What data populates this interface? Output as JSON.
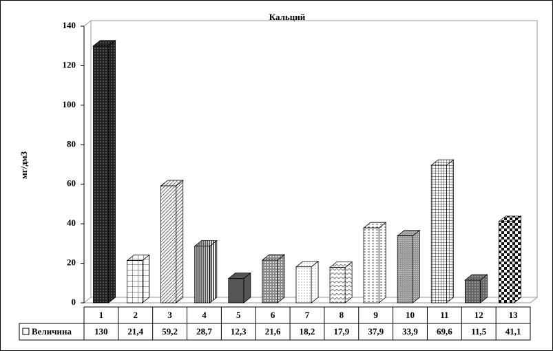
{
  "chart_data": {
    "type": "bar",
    "title": "Кальций",
    "y_label": "мг/дм3",
    "categories": [
      "1",
      "2",
      "3",
      "4",
      "5",
      "6",
      "7",
      "8",
      "9",
      "10",
      "11",
      "12",
      "13"
    ],
    "series": [
      {
        "name": "Величина",
        "color": "#3a3a3a",
        "values": [
          130,
          21.4,
          59.2,
          28.7,
          12.3,
          21.6,
          18.2,
          17.9,
          37.9,
          33.9,
          69.6,
          11.5,
          41.1
        ],
        "value_labels": [
          "130",
          "21,4",
          "59,2",
          "28,7",
          "12,3",
          "21,6",
          "18,2",
          "17,9",
          "37,9",
          "33,9",
          "69,6",
          "11,5",
          "41,1"
        ]
      }
    ],
    "ylim": [
      0,
      140
    ],
    "yticks": [
      0,
      20,
      40,
      60,
      80,
      100,
      120,
      140
    ],
    "grid": false
  }
}
